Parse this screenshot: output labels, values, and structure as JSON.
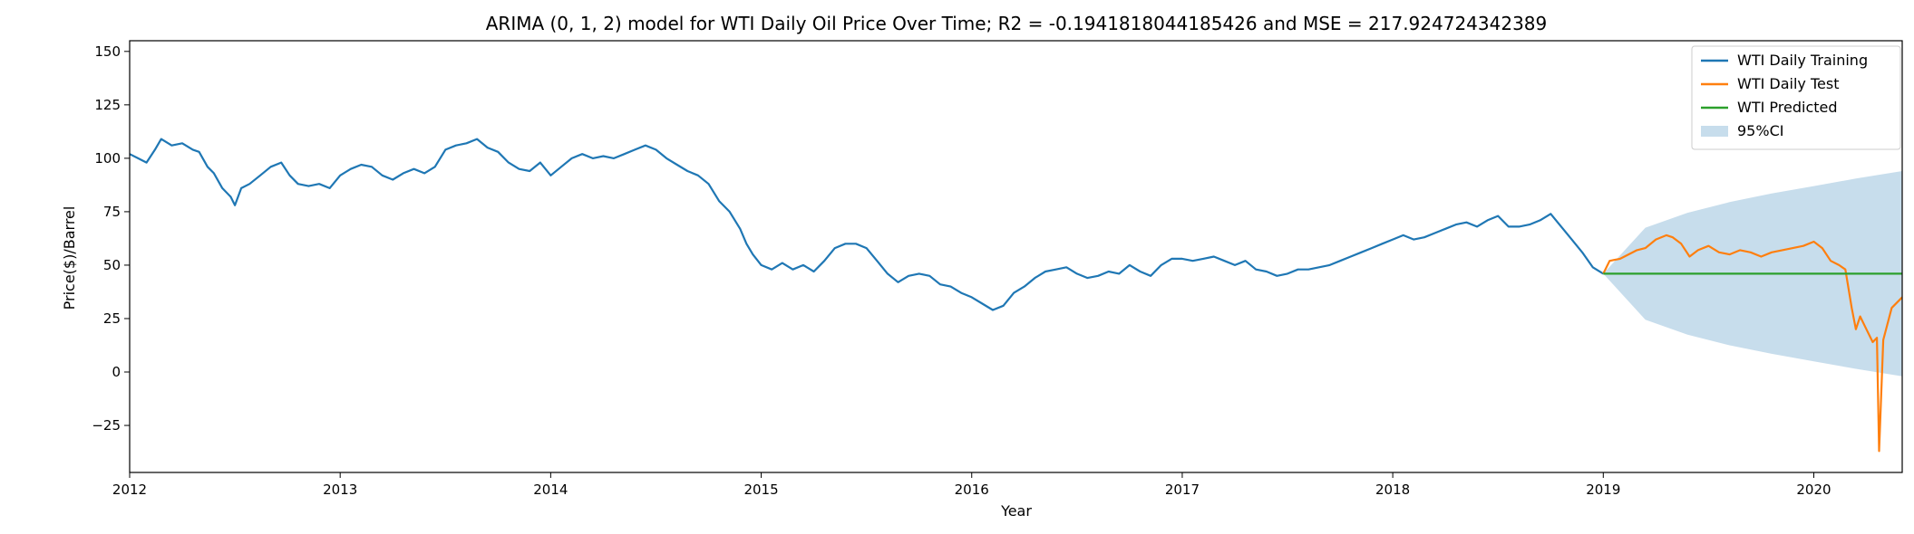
{
  "chart_data": {
    "type": "line",
    "title": "ARIMA (0, 1, 2) model for WTI Daily Oil Price Over Time; R2 = -0.1941818044185426 and MSE = 217.924724342389",
    "xlabel": "Year",
    "ylabel": "Price($)/Barrel",
    "xlim": [
      2012.0,
      2020.42
    ],
    "ylim": [
      -47,
      155
    ],
    "xticks": [
      "2012",
      "2013",
      "2014",
      "2015",
      "2016",
      "2017",
      "2018",
      "2019",
      "2020"
    ],
    "yticks": [
      150,
      125,
      100,
      75,
      50,
      25,
      0,
      -25
    ],
    "legend_position": "top-right",
    "grid": false,
    "colors": {
      "training": "#1f77b4",
      "test": "#ff7f0e",
      "predicted": "#2ca02c",
      "ci": "#1f77b4"
    },
    "series": [
      {
        "name": "WTI Daily Training",
        "points": [
          [
            2012.0,
            102
          ],
          [
            2012.04,
            100
          ],
          [
            2012.08,
            98
          ],
          [
            2012.12,
            104
          ],
          [
            2012.15,
            109
          ],
          [
            2012.2,
            106
          ],
          [
            2012.25,
            107
          ],
          [
            2012.3,
            104
          ],
          [
            2012.33,
            103
          ],
          [
            2012.37,
            96
          ],
          [
            2012.4,
            93
          ],
          [
            2012.44,
            86
          ],
          [
            2012.48,
            82
          ],
          [
            2012.5,
            78
          ],
          [
            2012.53,
            86
          ],
          [
            2012.57,
            88
          ],
          [
            2012.62,
            92
          ],
          [
            2012.67,
            96
          ],
          [
            2012.72,
            98
          ],
          [
            2012.76,
            92
          ],
          [
            2012.8,
            88
          ],
          [
            2012.85,
            87
          ],
          [
            2012.9,
            88
          ],
          [
            2012.95,
            86
          ],
          [
            2013.0,
            92
          ],
          [
            2013.05,
            95
          ],
          [
            2013.1,
            97
          ],
          [
            2013.15,
            96
          ],
          [
            2013.2,
            92
          ],
          [
            2013.25,
            90
          ],
          [
            2013.3,
            93
          ],
          [
            2013.35,
            95
          ],
          [
            2013.4,
            93
          ],
          [
            2013.45,
            96
          ],
          [
            2013.5,
            104
          ],
          [
            2013.55,
            106
          ],
          [
            2013.6,
            107
          ],
          [
            2013.65,
            109
          ],
          [
            2013.7,
            105
          ],
          [
            2013.75,
            103
          ],
          [
            2013.8,
            98
          ],
          [
            2013.85,
            95
          ],
          [
            2013.9,
            94
          ],
          [
            2013.95,
            98
          ],
          [
            2014.0,
            92
          ],
          [
            2014.05,
            96
          ],
          [
            2014.1,
            100
          ],
          [
            2014.15,
            102
          ],
          [
            2014.2,
            100
          ],
          [
            2014.25,
            101
          ],
          [
            2014.3,
            100
          ],
          [
            2014.35,
            102
          ],
          [
            2014.4,
            104
          ],
          [
            2014.45,
            106
          ],
          [
            2014.5,
            104
          ],
          [
            2014.55,
            100
          ],
          [
            2014.6,
            97
          ],
          [
            2014.65,
            94
          ],
          [
            2014.7,
            92
          ],
          [
            2014.75,
            88
          ],
          [
            2014.8,
            80
          ],
          [
            2014.85,
            75
          ],
          [
            2014.9,
            67
          ],
          [
            2014.93,
            60
          ],
          [
            2014.96,
            55
          ],
          [
            2015.0,
            50
          ],
          [
            2015.05,
            48
          ],
          [
            2015.1,
            51
          ],
          [
            2015.15,
            48
          ],
          [
            2015.2,
            50
          ],
          [
            2015.25,
            47
          ],
          [
            2015.3,
            52
          ],
          [
            2015.35,
            58
          ],
          [
            2015.4,
            60
          ],
          [
            2015.45,
            60
          ],
          [
            2015.5,
            58
          ],
          [
            2015.55,
            52
          ],
          [
            2015.6,
            46
          ],
          [
            2015.65,
            42
          ],
          [
            2015.7,
            45
          ],
          [
            2015.75,
            46
          ],
          [
            2015.8,
            45
          ],
          [
            2015.85,
            41
          ],
          [
            2015.9,
            40
          ],
          [
            2015.95,
            37
          ],
          [
            2016.0,
            35
          ],
          [
            2016.05,
            32
          ],
          [
            2016.1,
            29
          ],
          [
            2016.15,
            31
          ],
          [
            2016.2,
            37
          ],
          [
            2016.25,
            40
          ],
          [
            2016.3,
            44
          ],
          [
            2016.35,
            47
          ],
          [
            2016.4,
            48
          ],
          [
            2016.45,
            49
          ],
          [
            2016.5,
            46
          ],
          [
            2016.55,
            44
          ],
          [
            2016.6,
            45
          ],
          [
            2016.65,
            47
          ],
          [
            2016.7,
            46
          ],
          [
            2016.75,
            50
          ],
          [
            2016.8,
            47
          ],
          [
            2016.85,
            45
          ],
          [
            2016.9,
            50
          ],
          [
            2016.95,
            53
          ],
          [
            2017.0,
            53
          ],
          [
            2017.05,
            52
          ],
          [
            2017.1,
            53
          ],
          [
            2017.15,
            54
          ],
          [
            2017.2,
            52
          ],
          [
            2017.25,
            50
          ],
          [
            2017.3,
            52
          ],
          [
            2017.35,
            48
          ],
          [
            2017.4,
            47
          ],
          [
            2017.45,
            45
          ],
          [
            2017.5,
            46
          ],
          [
            2017.55,
            48
          ],
          [
            2017.6,
            48
          ],
          [
            2017.65,
            49
          ],
          [
            2017.7,
            50
          ],
          [
            2017.75,
            52
          ],
          [
            2017.8,
            54
          ],
          [
            2017.85,
            56
          ],
          [
            2017.9,
            58
          ],
          [
            2017.95,
            60
          ],
          [
            2018.0,
            62
          ],
          [
            2018.05,
            64
          ],
          [
            2018.1,
            62
          ],
          [
            2018.15,
            63
          ],
          [
            2018.2,
            65
          ],
          [
            2018.25,
            67
          ],
          [
            2018.3,
            69
          ],
          [
            2018.35,
            70
          ],
          [
            2018.4,
            68
          ],
          [
            2018.45,
            71
          ],
          [
            2018.5,
            73
          ],
          [
            2018.55,
            68
          ],
          [
            2018.6,
            68
          ],
          [
            2018.65,
            69
          ],
          [
            2018.7,
            71
          ],
          [
            2018.75,
            74
          ],
          [
            2018.8,
            68
          ],
          [
            2018.85,
            62
          ],
          [
            2018.9,
            56
          ],
          [
            2018.95,
            49
          ],
          [
            2019.0,
            46
          ]
        ]
      },
      {
        "name": "WTI Daily Test",
        "points": [
          [
            2019.0,
            46
          ],
          [
            2019.03,
            52
          ],
          [
            2019.08,
            53
          ],
          [
            2019.12,
            55
          ],
          [
            2019.16,
            57
          ],
          [
            2019.2,
            58
          ],
          [
            2019.25,
            62
          ],
          [
            2019.3,
            64
          ],
          [
            2019.33,
            63
          ],
          [
            2019.37,
            60
          ],
          [
            2019.41,
            54
          ],
          [
            2019.45,
            57
          ],
          [
            2019.5,
            59
          ],
          [
            2019.55,
            56
          ],
          [
            2019.6,
            55
          ],
          [
            2019.65,
            57
          ],
          [
            2019.7,
            56
          ],
          [
            2019.75,
            54
          ],
          [
            2019.8,
            56
          ],
          [
            2019.85,
            57
          ],
          [
            2019.9,
            58
          ],
          [
            2019.95,
            59
          ],
          [
            2020.0,
            61
          ],
          [
            2020.04,
            58
          ],
          [
            2020.08,
            52
          ],
          [
            2020.12,
            50
          ],
          [
            2020.15,
            48
          ],
          [
            2020.18,
            30
          ],
          [
            2020.2,
            20
          ],
          [
            2020.22,
            26
          ],
          [
            2020.25,
            20
          ],
          [
            2020.28,
            14
          ],
          [
            2020.3,
            16
          ],
          [
            2020.31,
            -37
          ],
          [
            2020.33,
            15
          ],
          [
            2020.37,
            30
          ],
          [
            2020.42,
            35
          ]
        ]
      },
      {
        "name": "WTI Predicted",
        "points": [
          [
            2019.0,
            46
          ],
          [
            2020.42,
            46
          ]
        ]
      }
    ],
    "confidence_band": {
      "name": "95%CI",
      "x": [
        2019.0,
        2019.2,
        2019.4,
        2019.6,
        2019.8,
        2020.0,
        2020.2,
        2020.42
      ],
      "lower": [
        46,
        24.5,
        17.5,
        12.5,
        8.5,
        5,
        1.5,
        -2
      ],
      "upper": [
        46,
        67.5,
        74.5,
        79.5,
        83.5,
        87,
        90.5,
        94
      ]
    }
  }
}
